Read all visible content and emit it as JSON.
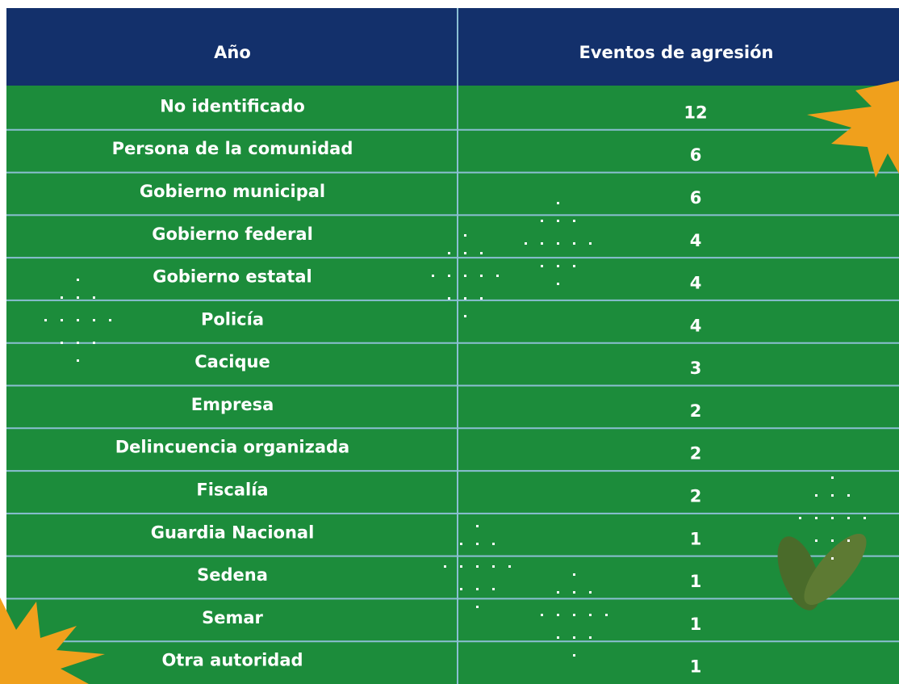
{
  "table": {
    "headers": [
      "Año",
      "Eventos de agresión"
    ],
    "rows": [
      [
        "No identificado",
        12
      ],
      [
        "Persona de la comunidad",
        6
      ],
      [
        "Gobierno municipal",
        6
      ],
      [
        "Gobierno federal",
        4
      ],
      [
        "Gobierno estatal",
        4
      ],
      [
        "Policía",
        4
      ],
      [
        "Cacique",
        3
      ],
      [
        "Empresa",
        2
      ],
      [
        "Delincuencia organizada",
        2
      ],
      [
        "Fiscalía",
        2
      ],
      [
        "Guardia Nacional",
        1
      ],
      [
        "Sedena",
        1
      ],
      [
        "Semar",
        1
      ],
      [
        "Otra autoridad",
        1
      ]
    ]
  }
}
